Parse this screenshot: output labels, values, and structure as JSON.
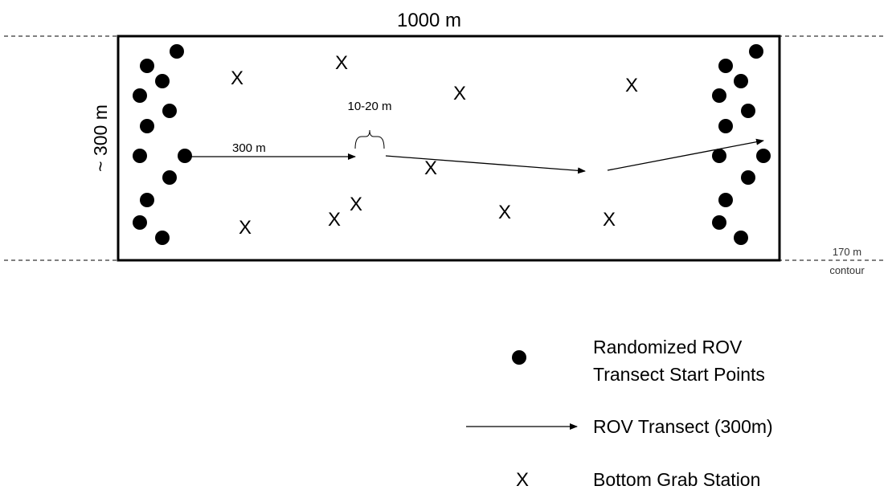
{
  "diagram": {
    "width_label": "1000 m",
    "height_label": "~ 300 m",
    "transect_label": "300 m",
    "gap_label": "10-20 m",
    "contour_label_line1": "170 m",
    "contour_label_line2": "contour",
    "grab_marker": "X"
  },
  "legend": {
    "start_points_line1": "Randomized ROV",
    "start_points_line2": "Transect Start Points",
    "transect": "ROV Transect (300m)",
    "grab_marker": "X",
    "grab_station": "Bottom Grab Station"
  }
}
